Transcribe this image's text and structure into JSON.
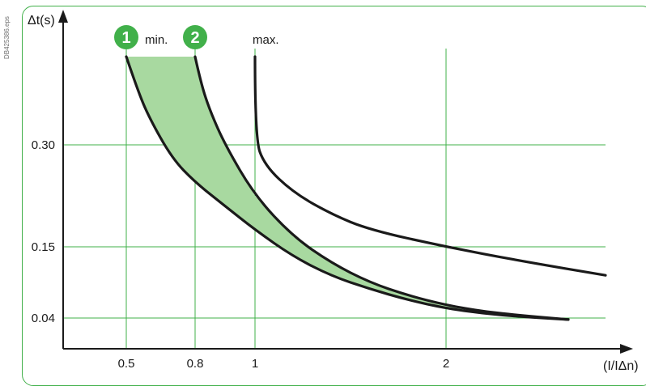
{
  "side_code": "DB425386.eps",
  "colors": {
    "grid": "#41b04a",
    "band": "#a8d9a0",
    "curve": "#1a1a1a",
    "marker": "#41b04a",
    "frame": "#41b04a"
  },
  "chart_data": {
    "type": "line",
    "xlabel": "(I/IΔn)",
    "ylabel": "Δt(s)",
    "x_ticks": [
      "0.5",
      "0.8",
      "1",
      "2"
    ],
    "y_ticks": [
      "0.30",
      "0.15",
      "0.04"
    ],
    "grid": true,
    "annotations": [
      {
        "marker": "1",
        "label": "min."
      },
      {
        "marker": "2",
        "label": ""
      },
      {
        "marker": "",
        "label": "max."
      }
    ],
    "series": [
      {
        "marker": "1",
        "points": [
          [
            0.5,
            0.43
          ],
          [
            0.55,
            0.38
          ],
          [
            0.6,
            0.34
          ],
          [
            0.7,
            0.28
          ],
          [
            0.8,
            0.245
          ],
          [
            0.9,
            0.21
          ],
          [
            1.0,
            0.175
          ],
          [
            1.2,
            0.135
          ],
          [
            1.4,
            0.105
          ],
          [
            1.6,
            0.085
          ],
          [
            1.8,
            0.068
          ],
          [
            2.0,
            0.055
          ],
          [
            2.2,
            0.047
          ],
          [
            2.4,
            0.042
          ],
          [
            2.65,
            0.038
          ]
        ]
      },
      {
        "marker": "2",
        "points": [
          [
            0.8,
            0.43
          ],
          [
            0.82,
            0.39
          ],
          [
            0.85,
            0.35
          ],
          [
            0.9,
            0.3
          ],
          [
            1.0,
            0.225
          ],
          [
            1.2,
            0.165
          ],
          [
            1.4,
            0.125
          ],
          [
            1.6,
            0.095
          ],
          [
            1.8,
            0.075
          ],
          [
            2.0,
            0.06
          ],
          [
            2.2,
            0.05
          ],
          [
            2.4,
            0.044
          ],
          [
            2.65,
            0.038
          ]
        ]
      },
      {
        "marker": "max.",
        "points": [
          [
            1.0,
            0.43
          ],
          [
            1.0,
            0.31
          ],
          [
            1.05,
            0.27
          ],
          [
            1.2,
            0.23
          ],
          [
            1.4,
            0.198
          ],
          [
            1.6,
            0.175
          ],
          [
            2.0,
            0.15
          ],
          [
            2.4,
            0.128
          ],
          [
            2.83,
            0.106
          ]
        ]
      }
    ]
  }
}
